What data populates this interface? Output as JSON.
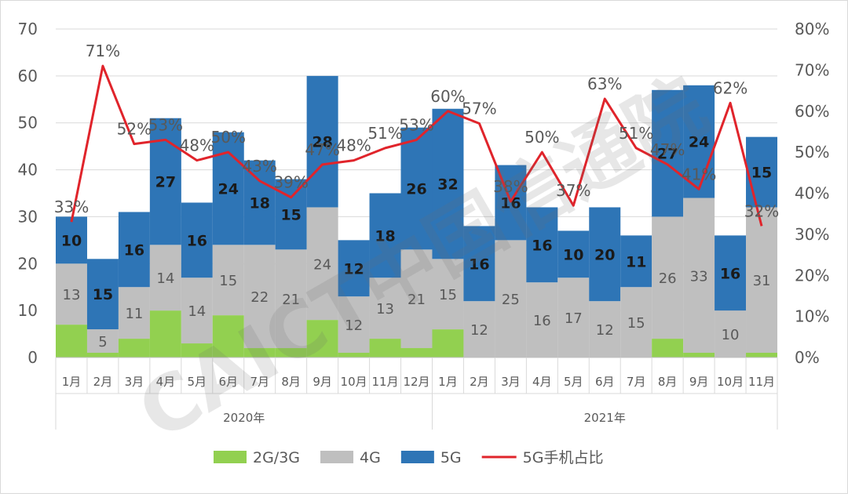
{
  "chart_data": {
    "type": "bar",
    "stacked": true,
    "categories": [
      "1月",
      "2月",
      "3月",
      "4月",
      "5月",
      "6月",
      "7月",
      "8月",
      "9月",
      "10月",
      "11月",
      "12月",
      "1月",
      "2月",
      "3月",
      "4月",
      "5月",
      "6月",
      "7月",
      "8月",
      "9月",
      "10月",
      "11月"
    ],
    "groups": [
      {
        "label": "2020年",
        "count": 12
      },
      {
        "label": "2021年",
        "count": 11
      }
    ],
    "series": [
      {
        "name": "2G/3G",
        "color": "#92d050",
        "values": [
          7,
          1,
          4,
          10,
          3,
          9,
          2,
          2,
          8,
          1,
          4,
          2,
          6,
          0,
          0,
          0,
          0,
          0,
          0,
          4,
          1,
          0,
          1
        ]
      },
      {
        "name": "4G",
        "color": "#bfbfbf",
        "values": [
          13,
          5,
          11,
          14,
          14,
          15,
          22,
          21,
          24,
          12,
          13,
          21,
          15,
          12,
          25,
          16,
          17,
          12,
          15,
          26,
          33,
          10,
          31
        ],
        "labels": [
          "13",
          "5",
          "11",
          "14",
          "14",
          "15",
          "22",
          "21",
          "24",
          "12",
          "13",
          "21",
          "15",
          "12",
          "25",
          "16",
          "17",
          "12",
          "15",
          "26",
          "33",
          "10",
          "31"
        ]
      },
      {
        "name": "5G",
        "color": "#2e75b6",
        "values": [
          10,
          15,
          16,
          27,
          16,
          24,
          18,
          15,
          28,
          12,
          18,
          26,
          32,
          16,
          16,
          16,
          10,
          20,
          11,
          27,
          24,
          16,
          15
        ],
        "labels": [
          "10",
          "15",
          "16",
          "27",
          "16",
          "24",
          "18",
          "15",
          "28",
          "12",
          "18",
          "26",
          "32",
          "16",
          "16",
          "16",
          "10",
          "20",
          "11",
          "27",
          "24",
          "16",
          "15"
        ]
      }
    ],
    "line": {
      "name": "5G手机占比",
      "color": "#e0242b",
      "values": [
        33,
        71,
        52,
        53,
        48,
        50,
        43,
        39,
        47,
        48,
        51,
        53,
        60,
        57,
        38,
        50,
        37,
        63,
        51,
        47,
        41,
        62,
        32
      ],
      "labels": [
        "33%",
        "71%",
        "52%",
        "53%",
        "48%",
        "50%",
        "43%",
        "39%",
        "47%",
        "48%",
        "51%",
        "53%",
        "60%",
        "57%",
        "38%",
        "50%",
        "37%",
        "63%",
        "51%",
        "47%",
        "41%",
        "62%",
        "32%"
      ]
    },
    "y_left": {
      "min": 0,
      "max": 70,
      "ticks": [
        "0",
        "10",
        "20",
        "30",
        "40",
        "50",
        "60",
        "70"
      ]
    },
    "y_right": {
      "min": 0,
      "max": 80,
      "ticks": [
        "0%",
        "10%",
        "20%",
        "30%",
        "40%",
        "50%",
        "60%",
        "70%",
        "80%"
      ]
    },
    "legend_position": "bottom",
    "grid": true
  },
  "legend": [
    {
      "label": "2G/3G",
      "kind": "box",
      "color": "#92d050"
    },
    {
      "label": "4G",
      "kind": "box",
      "color": "#bfbfbf"
    },
    {
      "label": "5G",
      "kind": "box",
      "color": "#2e75b6"
    },
    {
      "label": "5G手机占比",
      "kind": "line",
      "color": "#e0242b"
    }
  ],
  "watermark": "CAICT中国信通院"
}
